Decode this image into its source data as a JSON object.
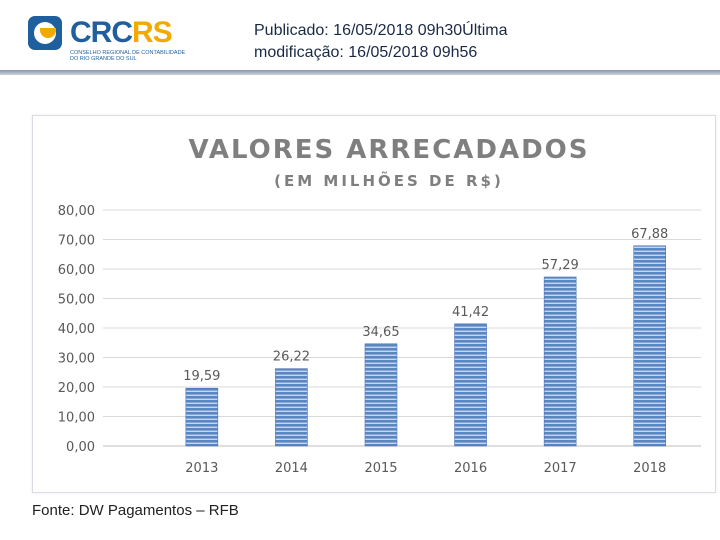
{
  "header": {
    "logo_text_primary": "CRC",
    "logo_text_secondary": "RS",
    "logo_subtitle": "CONSELHO REGIONAL DE CONTABILIDADE DO RIO GRANDE DO SUL",
    "publication": "Publicado: 16/05/2018 09h30Última modificação: 16/05/2018 09h56"
  },
  "colors": {
    "brand_blue": "#1f5f9e",
    "brand_yellow": "#f2a900",
    "bar": "#5b86c5",
    "bar_stripe": "#c6d6ee",
    "title": "#7f7f7f",
    "axis_text": "#595959"
  },
  "chart_data": {
    "type": "bar",
    "title": "VALORES ARRECADADOS",
    "subtitle": "(EM MILHÕES DE R$)",
    "categories": [
      "2013",
      "2014",
      "2015",
      "2016",
      "2017",
      "2018"
    ],
    "values": [
      19.59,
      26.22,
      34.65,
      41.42,
      57.29,
      67.88
    ],
    "data_labels": [
      "19,59",
      "26,22",
      "34,65",
      "41,42",
      "57,29",
      "67,88"
    ],
    "ylim": [
      0,
      80
    ],
    "yticks": [
      "0,00",
      "10,00",
      "20,00",
      "30,00",
      "40,00",
      "50,00",
      "60,00",
      "70,00",
      "80,00"
    ],
    "grid": true,
    "xlabel": "",
    "ylabel": ""
  },
  "footer": {
    "source": "Fonte: DW Pagamentos – RFB"
  }
}
